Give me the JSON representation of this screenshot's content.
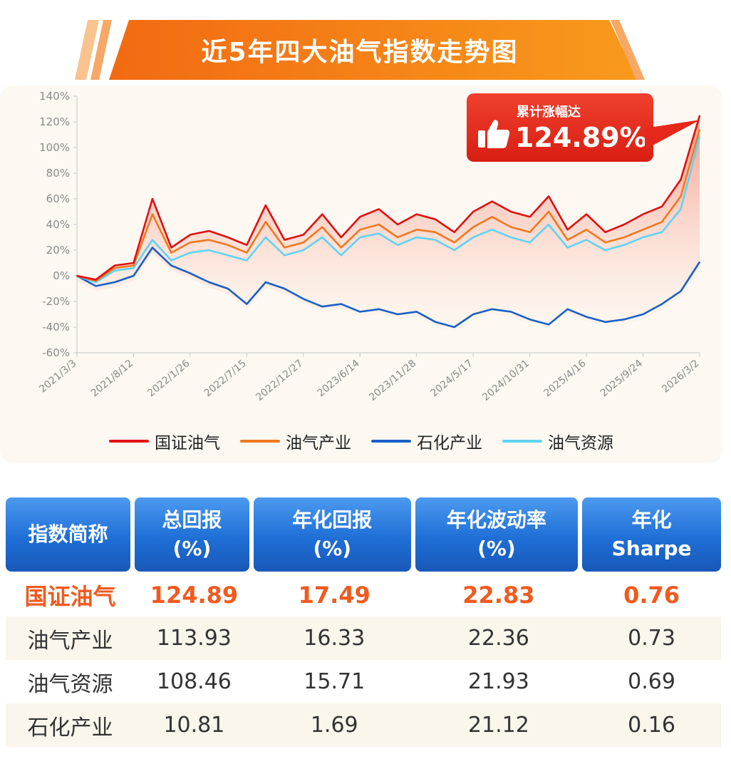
{
  "title": "近5年四大油气指数走势图",
  "callout": {
    "label": "累计涨幅达",
    "value": "124.89%"
  },
  "colors": {
    "guozheng": "#e01010",
    "youqi_chanye": "#f07820",
    "shihua": "#1a5fc8",
    "youqi_ziyuan": "#5fd3f5",
    "header_blue": "#1f6fd6",
    "highlight": "#f05a1e"
  },
  "chart_data": {
    "type": "line",
    "title": "近5年四大油气指数走势图",
    "x_ticks": [
      "2021/3/3",
      "2021/8/12",
      "2022/1/26",
      "2022/7/15",
      "2022/12/27",
      "2023/6/14",
      "2023/11/28",
      "2024/5/17",
      "2024/10/31",
      "2025/4/16",
      "2025/9/24",
      "2026/3/2"
    ],
    "y_ticks": [
      "-60%",
      "-40%",
      "-20%",
      "0%",
      "20%",
      "40%",
      "60%",
      "80%",
      "100%",
      "120%",
      "140%"
    ],
    "ylim": [
      -60,
      140
    ],
    "y_unit": "%",
    "grid": false,
    "legend_position": "bottom",
    "series": [
      {
        "name": "国证油气",
        "color": "#e01010",
        "values": [
          0,
          -3,
          8,
          10,
          60,
          22,
          32,
          35,
          30,
          24,
          55,
          28,
          32,
          48,
          30,
          46,
          52,
          40,
          48,
          44,
          34,
          50,
          58,
          50,
          46,
          62,
          36,
          48,
          34,
          40,
          48,
          54,
          75,
          124.89
        ]
      },
      {
        "name": "油气产业",
        "color": "#f07820",
        "values": [
          0,
          -4,
          6,
          8,
          48,
          18,
          26,
          28,
          24,
          18,
          42,
          22,
          26,
          38,
          22,
          36,
          40,
          30,
          36,
          34,
          26,
          38,
          46,
          38,
          34,
          50,
          28,
          36,
          26,
          30,
          36,
          42,
          62,
          113.93
        ]
      },
      {
        "name": "石化产业",
        "color": "#1a5fc8",
        "values": [
          0,
          -8,
          -5,
          0,
          22,
          8,
          2,
          -5,
          -10,
          -22,
          -5,
          -10,
          -18,
          -24,
          -22,
          -28,
          -26,
          -30,
          -28,
          -36,
          -40,
          -30,
          -26,
          -28,
          -34,
          -38,
          -26,
          -32,
          -36,
          -34,
          -30,
          -22,
          -12,
          10.81
        ]
      },
      {
        "name": "油气资源",
        "color": "#5fd3f5",
        "values": [
          0,
          -5,
          4,
          6,
          28,
          12,
          18,
          20,
          16,
          12,
          30,
          16,
          20,
          30,
          16,
          30,
          33,
          24,
          30,
          28,
          20,
          30,
          36,
          30,
          26,
          40,
          22,
          28,
          20,
          24,
          30,
          34,
          52,
          108.46
        ]
      }
    ]
  },
  "table": {
    "headers": [
      [
        "指数简称"
      ],
      [
        "总回报",
        "(%)"
      ],
      [
        "年化回报",
        "(%)"
      ],
      [
        "年化波动率",
        "(%)"
      ],
      [
        "年化",
        "Sharpe"
      ]
    ],
    "rows": [
      [
        "国证油气",
        "124.89",
        "17.49",
        "22.83",
        "0.76"
      ],
      [
        "油气产业",
        "113.93",
        "16.33",
        "22.36",
        "0.73"
      ],
      [
        "油气资源",
        "108.46",
        "15.71",
        "21.93",
        "0.69"
      ],
      [
        "石化产业",
        "10.81",
        "1.69",
        "21.12",
        "0.16"
      ]
    ]
  }
}
